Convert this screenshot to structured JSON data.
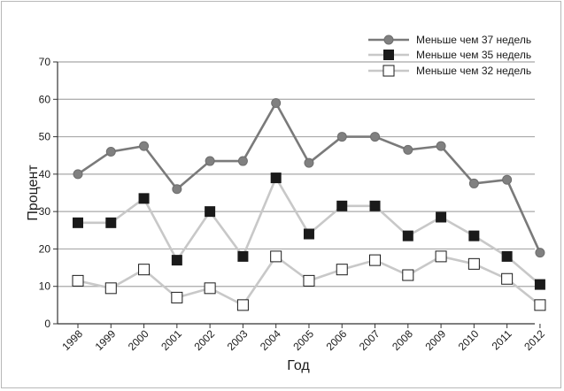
{
  "chart_data": {
    "type": "line",
    "title": "",
    "xlabel": "Год",
    "ylabel": "Процент",
    "ylim": [
      0,
      70
    ],
    "yticks": [
      0,
      10,
      20,
      30,
      40,
      50,
      60,
      70
    ],
    "grid": true,
    "legend_position": "top-right",
    "categories": [
      "1998",
      "1999",
      "2000",
      "2001",
      "2002",
      "2003",
      "2004",
      "2005",
      "2006",
      "2007",
      "2008",
      "2009",
      "2010",
      "2011",
      "2012"
    ],
    "series": [
      {
        "name": "Меньше чем 37 недель",
        "marker": "circle",
        "line_color": "#7a7a7a",
        "marker_fill": "#808080",
        "values": [
          40,
          46,
          47.5,
          36,
          43.5,
          43.5,
          59,
          43,
          50,
          50,
          46.5,
          47.5,
          37.5,
          38.5,
          19
        ]
      },
      {
        "name": "Меньше чем 35 недель",
        "marker": "square",
        "line_color": "#c8c8c8",
        "marker_fill": "#1a1a1a",
        "values": [
          27,
          27,
          33.5,
          17,
          30,
          18,
          39,
          24,
          31.5,
          31.5,
          23.5,
          28.5,
          23.5,
          18,
          10.5
        ]
      },
      {
        "name": "Меньше чем 32 недель",
        "marker": "square-open",
        "line_color": "#c8c8c8",
        "marker_fill": "#ffffff",
        "values": [
          11.5,
          9.5,
          14.5,
          7,
          9.5,
          5,
          18,
          11.5,
          14.5,
          17,
          13,
          18,
          16,
          12,
          5
        ]
      }
    ]
  },
  "colors": {
    "grid": "#a8a8a8",
    "axis": "#333333",
    "frame": "#b8b8b8"
  }
}
